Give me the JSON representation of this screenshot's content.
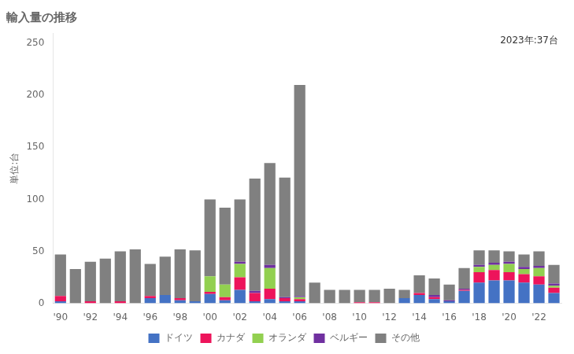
{
  "chart_data": {
    "type": "bar",
    "title": "輸入量の推移",
    "ylabel": "単位:台",
    "annotation": "2023年:37台",
    "categories": [
      "'90",
      null,
      "'92",
      null,
      "'94",
      null,
      "'96",
      null,
      "'98",
      null,
      "'00",
      null,
      "'02",
      null,
      "'04",
      null,
      "'06",
      null,
      "'08",
      null,
      "'10",
      null,
      "'12",
      null,
      "'14",
      null,
      "'16",
      null,
      "'18",
      null,
      "'20",
      null,
      "'22",
      null
    ],
    "series": [
      {
        "name": "ドイツ",
        "color": "#4472c4",
        "values": [
          2,
          0,
          0,
          0,
          0,
          0,
          5,
          8,
          3,
          2,
          9,
          3,
          13,
          2,
          4,
          2,
          2,
          0,
          0,
          0,
          0,
          0,
          0,
          5,
          8,
          4,
          2,
          12,
          20,
          22,
          22,
          20,
          18,
          10
        ]
      },
      {
        "name": "カナダ",
        "color": "#ed145b",
        "values": [
          5,
          0,
          2,
          0,
          2,
          0,
          2,
          0,
          2,
          0,
          2,
          3,
          12,
          8,
          10,
          3,
          2,
          0,
          0,
          0,
          1,
          1,
          0,
          0,
          2,
          2,
          0,
          1,
          10,
          10,
          8,
          8,
          8,
          5
        ]
      },
      {
        "name": "オランダ",
        "color": "#92d050",
        "values": [
          0,
          0,
          0,
          0,
          0,
          0,
          0,
          0,
          0,
          0,
          15,
          12,
          13,
          0,
          20,
          0,
          2,
          0,
          0,
          0,
          0,
          0,
          0,
          0,
          0,
          0,
          0,
          0,
          5,
          5,
          8,
          5,
          8,
          2
        ]
      },
      {
        "name": "ベルギー",
        "color": "#7030a0",
        "values": [
          0,
          0,
          0,
          0,
          0,
          0,
          0,
          0,
          0,
          0,
          0,
          0,
          2,
          2,
          3,
          1,
          1,
          0,
          0,
          0,
          0,
          0,
          0,
          0,
          0,
          2,
          1,
          1,
          2,
          2,
          2,
          2,
          2,
          2
        ]
      },
      {
        "name": "その他",
        "color": "#808080",
        "values": [
          40,
          33,
          38,
          43,
          48,
          52,
          31,
          37,
          47,
          49,
          74,
          74,
          60,
          108,
          98,
          115,
          203,
          20,
          13,
          13,
          12,
          12,
          14,
          8,
          17,
          16,
          15,
          20,
          14,
          12,
          10,
          12,
          14,
          18
        ]
      }
    ],
    "stacked": true,
    "ylim": [
      0,
      260
    ],
    "yticks": [
      0,
      50,
      100,
      150,
      200,
      250
    ],
    "grid": false,
    "legend": "bottom"
  }
}
